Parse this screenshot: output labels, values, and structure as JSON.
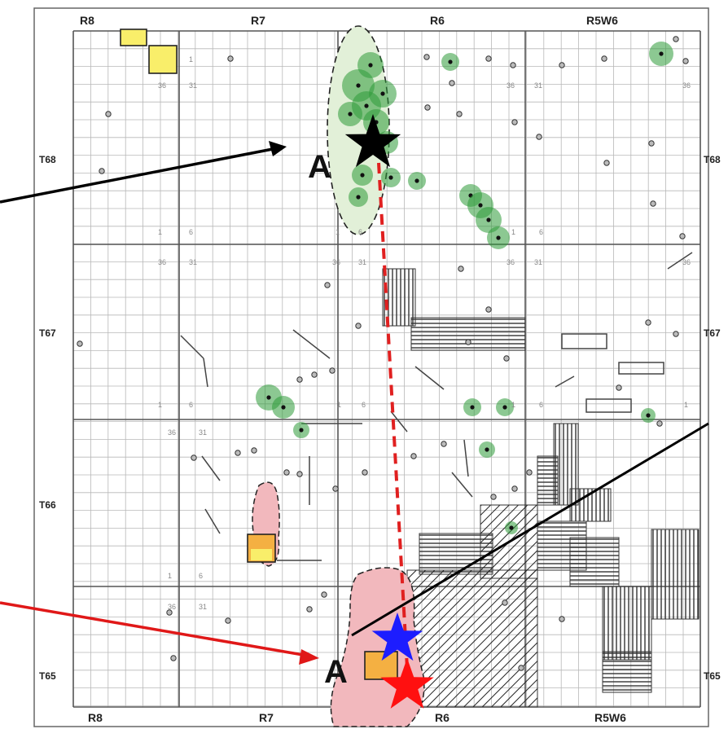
{
  "map": {
    "range_labels_top": [
      "R8",
      "R7",
      "R6",
      "R5W6"
    ],
    "range_labels_bottom": [
      "R8",
      "R7",
      "R6",
      "R5W6"
    ],
    "township_labels_left": [
      "T68",
      "T67",
      "T66",
      "T65"
    ],
    "township_labels_right": [
      "T68",
      "T67",
      "T65"
    ],
    "section_numbers": [
      "1",
      "6",
      "36",
      "31"
    ],
    "point_a_upper": "A",
    "point_a_lower": "A",
    "colors": {
      "background": "#ffffff",
      "grid": "#b8b8b8",
      "township_line": "#555555",
      "green_zone": "#2e9a38",
      "pink_zone": "#f2b8bd",
      "yellow_box": "#f9ee6a",
      "orange_box": "#f4b042",
      "black_star": "#000000",
      "blue_star": "#1d1dff",
      "red_star": "#ff1010",
      "dashed_line": "#e02020",
      "black_arrow": "#000000",
      "red_arrow": "#e01818"
    },
    "icons": [
      "black-star-icon",
      "blue-star-icon",
      "red-star-icon",
      "arrow-icon"
    ]
  }
}
